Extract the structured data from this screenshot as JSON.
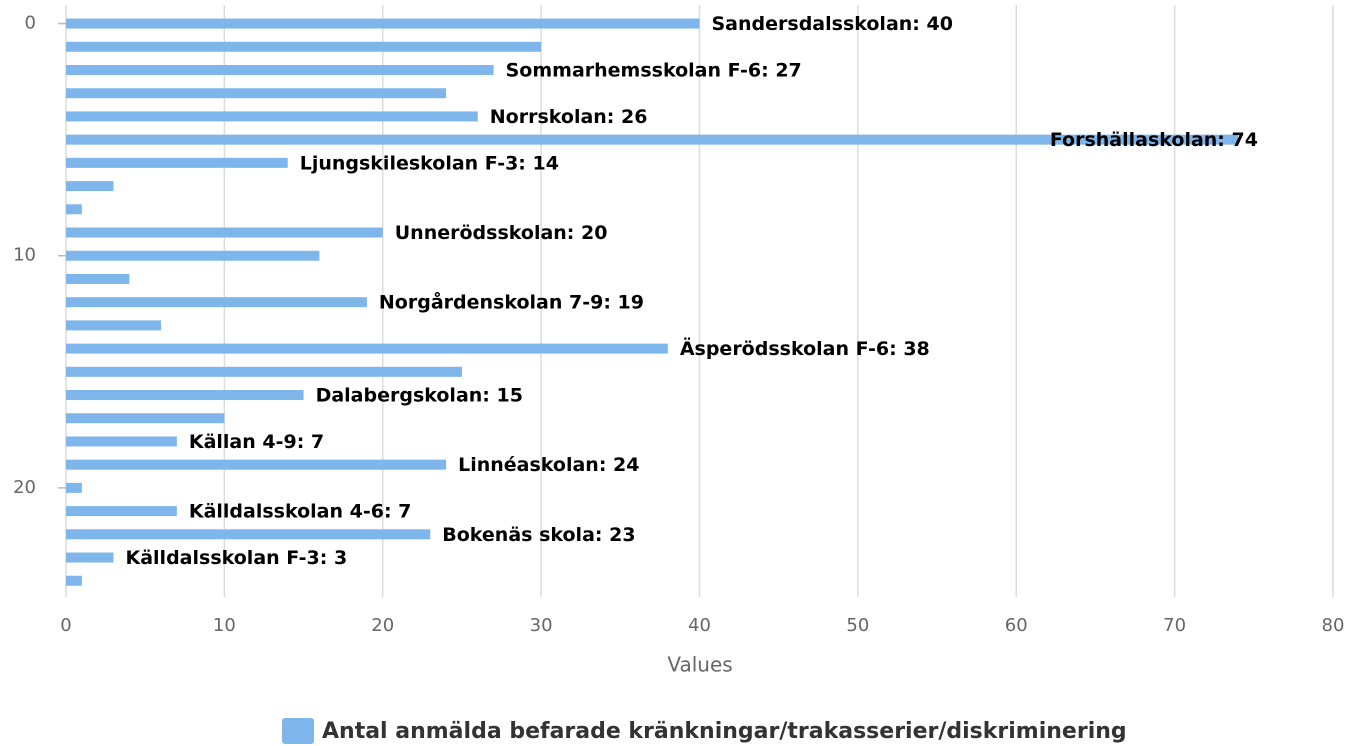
{
  "chart_data": {
    "type": "bar",
    "orientation": "horizontal",
    "color": "#7eb6ec",
    "y": [
      0,
      1,
      2,
      3,
      4,
      5,
      6,
      7,
      8,
      9,
      10,
      11,
      12,
      13,
      14,
      15,
      16,
      17,
      18,
      19,
      20,
      21,
      22,
      23,
      24
    ],
    "values": [
      40,
      30,
      27,
      24,
      26,
      74,
      14,
      3,
      1,
      20,
      16,
      4,
      19,
      6,
      38,
      25,
      15,
      10,
      7,
      24,
      1,
      7,
      23,
      3,
      1
    ],
    "value_labels": [
      "Sandersdalsskolan: 40",
      null,
      "Sommarhemsskolan F-6: 27",
      null,
      "Norrskolan: 26",
      "Forshällaskolan: 74",
      "Ljungskileskolan F-3: 14",
      null,
      null,
      "Unnerödsskolan: 20",
      null,
      null,
      "Norgårdenskolan 7-9: 19",
      null,
      "Äsperödsskolan F-6: 38",
      null,
      "Dalabergskolan: 15",
      null,
      "Källan 4-9: 7",
      "Linnéaskolan: 24",
      null,
      "Källdalsskolan 4-6: 7",
      "Bokenäs skola: 23",
      "Källdalsskolan F-3: 3",
      null
    ],
    "xlim": [
      0,
      80
    ],
    "xticks": [
      0,
      10,
      20,
      30,
      40,
      50,
      60,
      70,
      80
    ],
    "ylim": [
      -0.8,
      24.7
    ],
    "y_inverted": true,
    "yticks": [
      0,
      10,
      20
    ],
    "xlabel": "Values",
    "grid": true,
    "legend": "bottom",
    "series_name": "Antal anmälda befarade kränkningar/trakasserier/diskriminering"
  }
}
